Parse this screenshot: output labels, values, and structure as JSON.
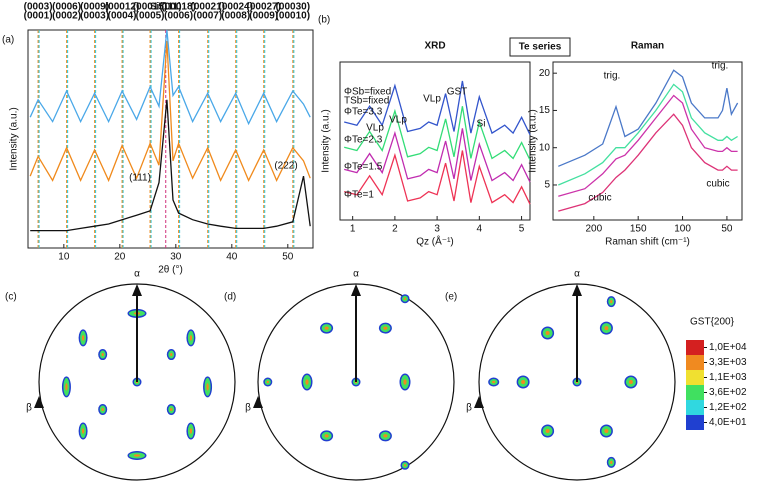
{
  "panel_labels": [
    "(a)",
    "(b)"
  ],
  "chart_data": [
    {
      "type": "line",
      "xlabel": "2θ (°)",
      "ylabel": "Intensity (a.u.)",
      "x": [
        4,
        5.4,
        8,
        10.5,
        13,
        15.5,
        18,
        20.4,
        23,
        25.4,
        27,
        28.4,
        29.5,
        30.5,
        33,
        35.7,
        38,
        40.7,
        43,
        45.7,
        48,
        50.9,
        52.8,
        54
      ],
      "xlim": [
        3.6,
        54.5
      ],
      "xticks": [
        10,
        20,
        30,
        40,
        50
      ],
      "ylim": [
        0,
        100
      ],
      "series": [
        {
          "color": "#111111",
          "values": [
            8,
            8,
            8,
            8,
            9,
            10,
            11,
            13,
            15,
            17,
            30,
            68,
            22,
            16,
            13,
            11,
            10,
            9,
            9,
            9,
            10,
            12,
            33,
            10
          ]
        },
        {
          "color": "#f08a1c",
          "values": [
            33,
            42,
            31,
            46,
            31,
            45,
            31,
            47,
            32,
            48,
            38,
            95,
            40,
            48,
            32,
            46,
            31,
            45,
            31,
            45,
            31,
            46,
            40,
            32
          ]
        },
        {
          "color": "#4aa8e8",
          "values": [
            60,
            68,
            58,
            72,
            58,
            71,
            58,
            72,
            59,
            74,
            65,
            100,
            70,
            74,
            58,
            71,
            58,
            71,
            57,
            71,
            58,
            72,
            66,
            60
          ]
        }
      ],
      "label_colors": [
        "#f08a1c",
        "#2ec4d6"
      ],
      "si_color": "#d0307a",
      "reference_lines": [
        {
          "x": 5.4,
          "labels": [
            "(0003)",
            "(0001)"
          ]
        },
        {
          "x": 10.5,
          "labels": [
            "(0006)",
            "(0002)"
          ]
        },
        {
          "x": 15.5,
          "labels": [
            "(0009)",
            "(0003)"
          ]
        },
        {
          "x": 20.4,
          "labels": [
            "(00012)",
            "(0004)"
          ]
        },
        {
          "x": 25.4,
          "labels": [
            "(00015)",
            "(0005)"
          ]
        },
        {
          "x": 28.2,
          "labels": [
            "Si(111)"
          ]
        },
        {
          "x": 30.5,
          "labels": [
            "(00018)",
            "(0006)"
          ]
        },
        {
          "x": 35.7,
          "labels": [
            "(00021)",
            "(0007)"
          ]
        },
        {
          "x": 40.7,
          "labels": [
            "(00024)",
            "(0008)"
          ]
        },
        {
          "x": 45.7,
          "labels": [
            "(00027)",
            "(0009)"
          ]
        },
        {
          "x": 50.9,
          "labels": [
            "(00030)",
            "(00010)"
          ]
        }
      ],
      "annotations": [
        "(111)",
        "(222)"
      ]
    },
    {
      "type": "line",
      "title": "XRD",
      "xlabel": "Qz (Å⁻¹)",
      "ylabel": "Intensity (a.u.)",
      "x": [
        0.8,
        1.1,
        1.4,
        1.7,
        2.0,
        2.3,
        2.6,
        2.8,
        3.0,
        3.2,
        3.4,
        3.6,
        3.8,
        4.0,
        4.3,
        4.6,
        4.8,
        5.0,
        5.2
      ],
      "xlim": [
        0.7,
        5.2
      ],
      "xticks": [
        1,
        2,
        3,
        4,
        5
      ],
      "ylim": [
        0,
        100
      ],
      "series": [
        {
          "name": "ΦTe=3.3",
          "color": "#3355cc",
          "values": [
            62,
            60,
            72,
            60,
            85,
            56,
            58,
            62,
            60,
            80,
            56,
            88,
            55,
            78,
            55,
            60,
            55,
            65,
            54
          ]
        },
        {
          "name": "ΦTe=2.3",
          "color": "#33dd77",
          "values": [
            46,
            44,
            56,
            44,
            69,
            40,
            42,
            46,
            44,
            64,
            40,
            72,
            39,
            62,
            39,
            44,
            39,
            49,
            38
          ]
        },
        {
          "name": "ΦTe=1.5",
          "color": "#c02cb0",
          "values": [
            32,
            30,
            42,
            30,
            55,
            26,
            28,
            32,
            30,
            50,
            26,
            58,
            25,
            48,
            25,
            30,
            25,
            35,
            24
          ]
        },
        {
          "name": "ΦTe=1",
          "color": "#ee3355",
          "values": [
            18,
            16,
            28,
            16,
            41,
            12,
            14,
            18,
            16,
            36,
            12,
            44,
            11,
            34,
            11,
            16,
            11,
            21,
            10
          ]
        }
      ],
      "annotations": [
        "ΦSb=fixed",
        "TSb=fixed",
        "VLp",
        "VLp",
        "VLp",
        "GST",
        "Si"
      ]
    },
    {
      "type": "line",
      "title": "Raman",
      "header": "Te series",
      "xlabel": "Raman shift (cm⁻¹)",
      "ylabel": "Intensity (a.u.)",
      "x": [
        240,
        210,
        190,
        175,
        165,
        150,
        130,
        110,
        100,
        90,
        75,
        60,
        55,
        50,
        45,
        38
      ],
      "xlim": [
        246,
        33
      ],
      "xticks": [
        200,
        150,
        100,
        50
      ],
      "ylim": [
        0.3,
        21.5
      ],
      "yticks": [
        5,
        10,
        15,
        20
      ],
      "series": [
        {
          "color": "#4a78c8",
          "values": [
            7.5,
            9,
            10.5,
            15.5,
            11.5,
            12.5,
            16,
            20.4,
            19.5,
            16,
            14,
            14,
            15,
            18,
            14.5,
            16
          ]
        },
        {
          "color": "#44e0a0",
          "values": [
            5,
            6.5,
            8,
            10,
            10,
            12,
            15,
            18.5,
            17.5,
            14,
            12,
            11,
            11,
            11.5,
            11,
            11.5
          ]
        },
        {
          "color": "#cc33aa",
          "values": [
            3.5,
            4.5,
            6.5,
            8.5,
            9,
            11,
            14,
            17,
            16,
            12.5,
            10,
            9.5,
            9.5,
            10,
            9.5,
            9.5
          ]
        },
        {
          "color": "#dd3377",
          "values": [
            1.5,
            2.5,
            4,
            6,
            7,
            9,
            12,
            14.5,
            13,
            10,
            8,
            7,
            7,
            7.5,
            7,
            7
          ]
        }
      ],
      "annotations": [
        "trig.",
        "trig.",
        "cubic",
        "cubic"
      ]
    }
  ],
  "pole_figures": {
    "labels": [
      "(c)",
      "(d)",
      "(e)"
    ],
    "alpha": "α",
    "beta": "β"
  },
  "colorbar": {
    "title": "GST{200}",
    "colors": [
      "#d42020",
      "#f08a20",
      "#f0e030",
      "#40e060",
      "#30d8e0",
      "#2040d0"
    ],
    "ticks": [
      {
        "value": 10000,
        "label": "1,0E+04"
      },
      {
        "value": 3300,
        "label": "3,3E+03"
      },
      {
        "value": 1100,
        "label": "1,1E+03"
      },
      {
        "value": 360,
        "label": "3,6E+02"
      },
      {
        "value": 120,
        "label": "1,2E+02"
      },
      {
        "value": 40,
        "label": "4,0E+01"
      }
    ]
  }
}
